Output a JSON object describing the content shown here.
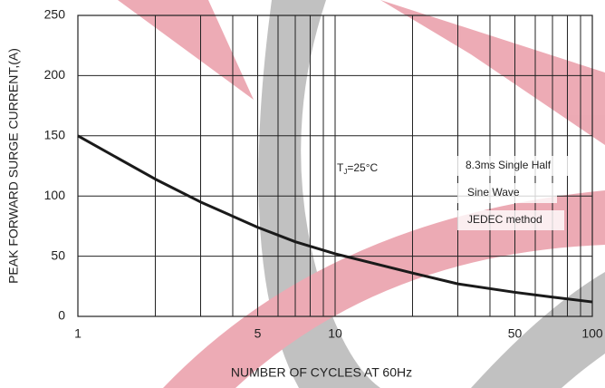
{
  "chart_data": {
    "type": "line",
    "ylabel": "PEAK FORWARD SURGE CURRENT,(A)",
    "xlabel": "NUMBER OF CYCLES AT 60Hz",
    "x": [
      1,
      2,
      3,
      5,
      7,
      10,
      20,
      30,
      50,
      70,
      100
    ],
    "series": [
      {
        "color": "#1a1a1a",
        "values": [
          150,
          114,
          95,
          74,
          62,
          52,
          36,
          27,
          20,
          16,
          12
        ]
      }
    ],
    "xscale": "log",
    "xlim": [
      1,
      100
    ],
    "ylim": [
      0,
      250
    ],
    "xticks": [
      1,
      5,
      10,
      50,
      100
    ],
    "x_minor_grid": [
      2,
      3,
      4,
      6,
      7,
      8,
      9,
      20,
      30,
      40,
      60,
      70,
      80,
      90
    ],
    "yticks": [
      0,
      50,
      100,
      150,
      200,
      250
    ],
    "grid": true,
    "temperature_label": [
      "T",
      "J",
      "=25°C"
    ],
    "annotations": [
      "8.3ms Single Half",
      "Sine Wave",
      "JEDEC method"
    ]
  }
}
